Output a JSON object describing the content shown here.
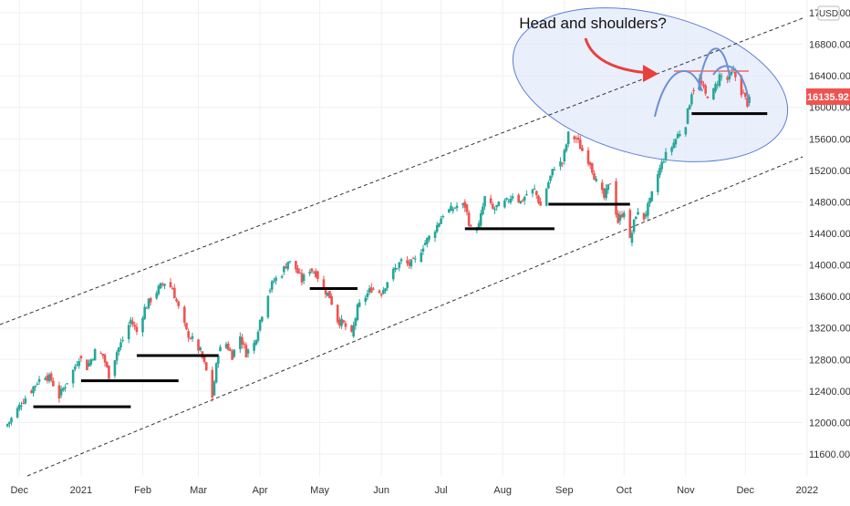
{
  "chart_data": {
    "type": "candlestick",
    "title": "",
    "currency": "USD",
    "xlabel": "",
    "ylabel": "",
    "ylim": [
      11300,
      17100
    ],
    "grid": true,
    "y_ticks": [
      11600,
      12000,
      12400,
      12800,
      13200,
      13600,
      14000,
      14400,
      14800,
      15200,
      15600,
      16000,
      16400,
      16800,
      17200
    ],
    "y_tick_labels": [
      "11600.00",
      "12000.00",
      "12400.00",
      "12800.00",
      "13200.00",
      "13600.00",
      "14000.00",
      "14400.00",
      "14800.00",
      "15200.00",
      "15600.00",
      "16000.00",
      "16400.00",
      "16800.00",
      "17200.00"
    ],
    "x_ticks": [
      {
        "label": "Dec",
        "date": "2020-12-01"
      },
      {
        "label": "2021",
        "date": "2021-01-01"
      },
      {
        "label": "Feb",
        "date": "2021-02-01"
      },
      {
        "label": "Mar",
        "date": "2021-03-01"
      },
      {
        "label": "Apr",
        "date": "2021-04-01"
      },
      {
        "label": "May",
        "date": "2021-05-01"
      },
      {
        "label": "Jun",
        "date": "2021-06-01"
      },
      {
        "label": "Jul",
        "date": "2021-07-01"
      },
      {
        "label": "Aug",
        "date": "2021-08-01"
      },
      {
        "label": "Sep",
        "date": "2021-09-01"
      },
      {
        "label": "Oct",
        "date": "2021-10-01"
      },
      {
        "label": "Nov",
        "date": "2021-11-01"
      },
      {
        "label": "Dec",
        "date": "2021-12-01"
      },
      {
        "label": "2022",
        "date": "2022-01-01"
      }
    ],
    "last_price": "16135.92",
    "annotations": {
      "text": "Head and shoulders?"
    },
    "colors": {
      "up": "#26a69a",
      "down": "#ef5350",
      "support": "#000000",
      "channel": "#333333",
      "ellipse_fill": "#e3e9fb",
      "ellipse_stroke": "#5b7fd6",
      "arrow": "#e8413c",
      "neckline_top": "#f08a8a",
      "shoulder_arcs": "#6d8fd4",
      "price_label_bg": "#ef5350",
      "grid": "#eef0f3"
    },
    "candles_close_path": [
      [
        "2020-11-24",
        11950
      ],
      [
        "2020-11-28",
        12080
      ],
      [
        "2020-12-02",
        12250
      ],
      [
        "2020-12-06",
        12380
      ],
      [
        "2020-12-10",
        12520
      ],
      [
        "2020-12-14",
        12600
      ],
      [
        "2020-12-17",
        12540
      ],
      [
        "2020-12-21",
        12330
      ],
      [
        "2020-12-24",
        12480
      ],
      [
        "2020-12-28",
        12660
      ],
      [
        "2020-12-31",
        12830
      ],
      [
        "2021-01-04",
        12700
      ],
      [
        "2021-01-08",
        12900
      ],
      [
        "2021-01-12",
        12850
      ],
      [
        "2021-01-15",
        12600
      ],
      [
        "2021-01-19",
        12900
      ],
      [
        "2021-01-22",
        13050
      ],
      [
        "2021-01-26",
        13300
      ],
      [
        "2021-01-29",
        13150
      ],
      [
        "2021-02-02",
        13450
      ],
      [
        "2021-02-05",
        13560
      ],
      [
        "2021-02-09",
        13700
      ],
      [
        "2021-02-12",
        13780
      ],
      [
        "2021-02-16",
        13700
      ],
      [
        "2021-02-19",
        13450
      ],
      [
        "2021-02-23",
        13150
      ],
      [
        "2021-02-26",
        13050
      ],
      [
        "2021-03-02",
        12900
      ],
      [
        "2021-03-05",
        12650
      ],
      [
        "2021-03-08",
        12330
      ],
      [
        "2021-03-11",
        12900
      ],
      [
        "2021-03-15",
        13000
      ],
      [
        "2021-03-18",
        12850
      ],
      [
        "2021-03-22",
        13100
      ],
      [
        "2021-03-25",
        12880
      ],
      [
        "2021-03-29",
        13000
      ],
      [
        "2021-04-01",
        13300
      ],
      [
        "2021-04-05",
        13650
      ],
      [
        "2021-04-08",
        13800
      ],
      [
        "2021-04-12",
        13900
      ],
      [
        "2021-04-15",
        14050
      ],
      [
        "2021-04-19",
        13950
      ],
      [
        "2021-04-22",
        13800
      ],
      [
        "2021-04-26",
        13950
      ],
      [
        "2021-04-29",
        13900
      ],
      [
        "2021-05-03",
        13700
      ],
      [
        "2021-05-06",
        13600
      ],
      [
        "2021-05-10",
        13300
      ],
      [
        "2021-05-13",
        13250
      ],
      [
        "2021-05-17",
        13100
      ],
      [
        "2021-05-20",
        13450
      ],
      [
        "2021-05-24",
        13600
      ],
      [
        "2021-05-27",
        13700
      ],
      [
        "2021-06-01",
        13650
      ],
      [
        "2021-06-04",
        13800
      ],
      [
        "2021-06-08",
        13950
      ],
      [
        "2021-06-11",
        14050
      ],
      [
        "2021-06-15",
        14000
      ],
      [
        "2021-06-18",
        14050
      ],
      [
        "2021-06-22",
        14250
      ],
      [
        "2021-06-25",
        14350
      ],
      [
        "2021-06-29",
        14500
      ],
      [
        "2021-07-02",
        14650
      ],
      [
        "2021-07-06",
        14700
      ],
      [
        "2021-07-09",
        14750
      ],
      [
        "2021-07-13",
        14750
      ],
      [
        "2021-07-16",
        14450
      ],
      [
        "2021-07-20",
        14500
      ],
      [
        "2021-07-23",
        14850
      ],
      [
        "2021-07-27",
        14700
      ],
      [
        "2021-07-30",
        14750
      ],
      [
        "2021-08-03",
        14800
      ],
      [
        "2021-08-06",
        14900
      ],
      [
        "2021-08-10",
        14800
      ],
      [
        "2021-08-13",
        14900
      ],
      [
        "2021-08-17",
        14950
      ],
      [
        "2021-08-20",
        14750
      ],
      [
        "2021-08-24",
        15050
      ],
      [
        "2021-08-27",
        15250
      ],
      [
        "2021-08-31",
        15300
      ],
      [
        "2021-09-03",
        15650
      ],
      [
        "2021-09-07",
        15600
      ],
      [
        "2021-09-10",
        15450
      ],
      [
        "2021-09-14",
        15300
      ],
      [
        "2021-09-17",
        15050
      ],
      [
        "2021-09-21",
        14850
      ],
      [
        "2021-09-24",
        15050
      ],
      [
        "2021-09-28",
        14550
      ],
      [
        "2021-10-01",
        14700
      ],
      [
        "2021-10-04",
        14300
      ],
      [
        "2021-10-07",
        14650
      ],
      [
        "2021-10-11",
        14600
      ],
      [
        "2021-10-14",
        14800
      ],
      [
        "2021-10-18",
        15150
      ],
      [
        "2021-10-21",
        15350
      ],
      [
        "2021-10-25",
        15500
      ],
      [
        "2021-10-28",
        15650
      ],
      [
        "2021-11-01",
        15800
      ],
      [
        "2021-11-04",
        16200
      ],
      [
        "2021-11-08",
        16350
      ],
      [
        "2021-11-11",
        16150
      ],
      [
        "2021-11-15",
        16200
      ],
      [
        "2021-11-18",
        16400
      ],
      [
        "2021-11-22",
        16350
      ],
      [
        "2021-11-25",
        16450
      ],
      [
        "2021-11-29",
        16200
      ],
      [
        "2021-12-02",
        16050
      ],
      [
        "2021-12-05",
        16135.92
      ]
    ]
  }
}
